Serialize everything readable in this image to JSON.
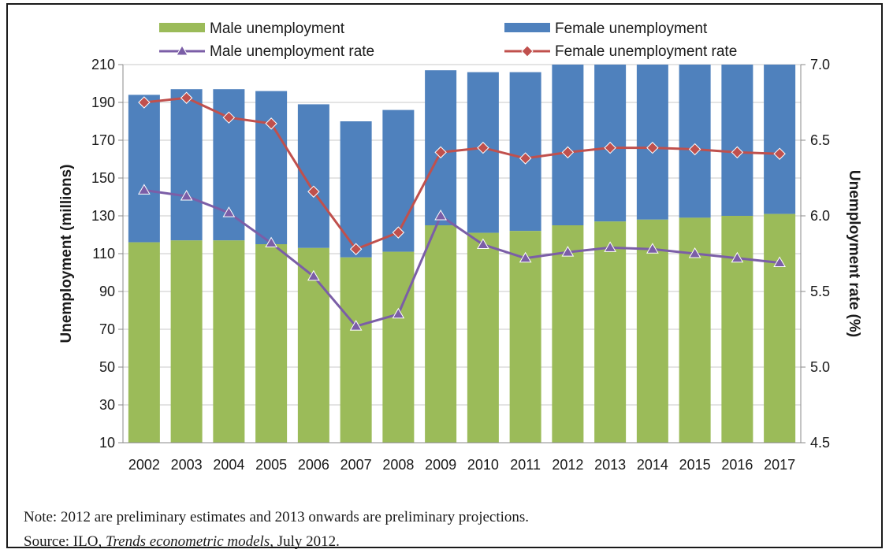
{
  "chart_data": {
    "type": "bar",
    "stacked": true,
    "categories": [
      "2002",
      "2003",
      "2004",
      "2005",
      "2006",
      "2007",
      "2008",
      "2009",
      "2010",
      "2011",
      "2012",
      "2013",
      "2014",
      "2015",
      "2016",
      "2017"
    ],
    "series": [
      {
        "name": "Male unemployment",
        "type": "bar",
        "axis": "left",
        "color": "#9bbb59",
        "values": [
          106,
          107,
          107,
          105,
          103,
          98,
          101,
          115,
          111,
          112,
          115,
          117,
          118,
          119,
          120,
          121
        ]
      },
      {
        "name": "Female unemployment",
        "type": "bar",
        "axis": "left",
        "color": "#4f81bd",
        "values": [
          78,
          80,
          80,
          81,
          76,
          72,
          75,
          82,
          85,
          84,
          85,
          87,
          88,
          89,
          90,
          92
        ]
      },
      {
        "name": "Male unemployment rate",
        "type": "line",
        "axis": "right",
        "color": "#7b5ea7",
        "marker": "triangle",
        "values": [
          6.17,
          6.13,
          6.02,
          5.82,
          5.6,
          5.27,
          5.35,
          6.0,
          5.81,
          5.72,
          5.76,
          5.79,
          5.78,
          5.75,
          5.72,
          5.69
        ]
      },
      {
        "name": "Female unemployment rate",
        "type": "line",
        "axis": "right",
        "color": "#c0504d",
        "marker": "diamond",
        "values": [
          6.75,
          6.78,
          6.65,
          6.61,
          6.16,
          5.78,
          5.89,
          6.42,
          6.45,
          6.38,
          6.42,
          6.45,
          6.45,
          6.44,
          6.42,
          6.41
        ]
      }
    ],
    "ylabel": "Unemployment (millions)",
    "y2label": "Unemployment rate (%)",
    "ylim": [
      10,
      210
    ],
    "yticks": [
      "10",
      "30",
      "50",
      "70",
      "90",
      "110",
      "130",
      "150",
      "170",
      "190",
      "210"
    ],
    "y2lim": [
      4.5,
      7.0
    ],
    "y2ticks": [
      "4.5",
      "5.0",
      "5.5",
      "6.0",
      "6.5",
      "7.0"
    ],
    "legend_position": "top",
    "grid": "horizontal"
  },
  "note": "Note: 2012 are preliminary estimates and 2013 onwards are preliminary projections.",
  "source": {
    "prefix": "Source: ILO, ",
    "title": "Trends econometric models",
    "suffix": ", July 2012."
  }
}
